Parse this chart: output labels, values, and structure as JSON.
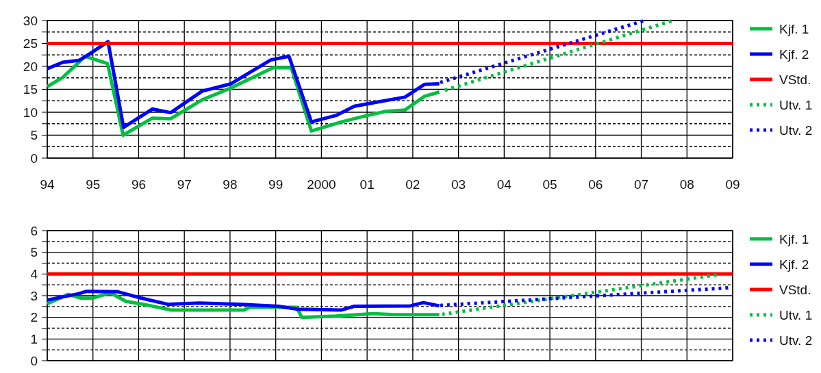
{
  "chart_data": [
    {
      "type": "line",
      "xlim": [
        1994,
        2009
      ],
      "xticks": [
        {
          "value": 1994,
          "label": "94"
        },
        {
          "value": 1995,
          "label": "95"
        },
        {
          "value": 1996,
          "label": "96"
        },
        {
          "value": 1997,
          "label": "97"
        },
        {
          "value": 1998,
          "label": "98"
        },
        {
          "value": 1999,
          "label": "99"
        },
        2000,
        {
          "value": 2001,
          "label": "01"
        },
        {
          "value": 2002,
          "label": "02"
        },
        {
          "value": 2003,
          "label": "03"
        },
        {
          "value": 2004,
          "label": "04"
        },
        {
          "value": 2005,
          "label": "05"
        },
        {
          "value": 2006,
          "label": "06"
        },
        {
          "value": 2007,
          "label": "07"
        },
        {
          "value": 2008,
          "label": "08"
        },
        {
          "value": 2009,
          "label": "09"
        }
      ],
      "ylim": [
        0,
        30
      ],
      "yticks": [
        0,
        {
          "value": 2.5,
          "label": null
        },
        5,
        {
          "value": 7.5,
          "label": null
        },
        10,
        {
          "value": 12.5,
          "label": null
        },
        15,
        {
          "value": 17.5,
          "label": null
        },
        20,
        {
          "value": 22.5,
          "label": null
        },
        25,
        {
          "value": 27.5,
          "label": null
        },
        30
      ],
      "grid": true,
      "legend": "right",
      "line_style": "solid",
      "series": [
        {
          "name": "Kjf. 1",
          "color": "#00c040",
          "x": [
            1994,
            1994.34,
            1994.83,
            1995.32,
            1995.66,
            1996.3,
            1996.7,
            1997.39,
            1998.02,
            1998.94,
            1999.34,
            1999.78,
            2000.44,
            2001.01,
            2001.41,
            2001.83,
            2002.26,
            2002.58
          ],
          "values": [
            15.6,
            17.6,
            22.2,
            20.6,
            5,
            8.7,
            8.6,
            12.7,
            15.3,
            19.7,
            19.7,
            5.9,
            7.9,
            9.3,
            10.2,
            10.5,
            13.5,
            14.4
          ]
        },
        {
          "name": "Kjf. 2",
          "color": "#0000ff",
          "x": [
            1994,
            1994.34,
            1994.69,
            1994.86,
            1995.33,
            1995.67,
            1996.3,
            1996.7,
            1997.39,
            1998.02,
            1998.89,
            1999.29,
            1999.78,
            2000.32,
            2000.72,
            2001.21,
            2001.83,
            2002.26,
            2002.58
          ],
          "values": [
            19.5,
            20.9,
            21.3,
            22.3,
            25.4,
            6.7,
            10.7,
            9.9,
            14.6,
            16.2,
            21.4,
            22.2,
            7.9,
            9.3,
            11.3,
            12.2,
            13.3,
            16.1,
            16.2
          ]
        },
        {
          "name": "VStd.",
          "color": "#ff0000",
          "x": [
            1994,
            2009
          ],
          "values": [
            25,
            25
          ]
        },
        {
          "name": "Utv. 1",
          "color": "#00c040",
          "line_style": "dotted",
          "x": [
            2002.7,
            2007.66
          ],
          "values": [
            14.8,
            29.9
          ]
        },
        {
          "name": "Utv. 2",
          "color": "#0000ff",
          "line_style": "dotted",
          "x": [
            2002.6,
            2007.04
          ],
          "values": [
            16.5,
            29.9
          ]
        }
      ]
    },
    {
      "type": "line",
      "xlim": [
        1994,
        2009
      ],
      "ylim": [
        0,
        6
      ],
      "yticks": [
        0,
        {
          "value": 0.5,
          "label": null
        },
        1,
        {
          "value": 1.5,
          "label": null
        },
        2,
        {
          "value": 2.5,
          "label": null
        },
        3,
        {
          "value": 3.5,
          "label": null
        },
        4,
        {
          "value": 4.5,
          "label": null
        },
        5,
        {
          "value": 5.5,
          "label": null
        },
        6
      ],
      "tick_labels": "y",
      "grid": true,
      "legend": "right",
      "line_style": "solid",
      "series": [
        {
          "name": "Kjf. 1",
          "color": "#00c040",
          "x": [
            1994,
            1994.46,
            1994.75,
            1994.98,
            1995.38,
            1995.72,
            1996.18,
            1996.7,
            1998.31,
            1998.43,
            1999.46,
            1999.57,
            2000.32,
            2001.13,
            2001.59,
            2002.58
          ],
          "values": [
            2.63,
            3.06,
            2.88,
            2.88,
            3.13,
            2.74,
            2.57,
            2.34,
            2.34,
            2.46,
            2.46,
            2.0,
            2.06,
            2.17,
            2.12,
            2.12
          ]
        },
        {
          "name": "Kjf. 2",
          "color": "#0000ff",
          "x": [
            1994,
            1994.69,
            1994.86,
            1995.55,
            1996.07,
            1996.64,
            1997.33,
            1998.25,
            1999.06,
            1999.46,
            2000.44,
            2000.72,
            2001.95,
            2002.23,
            2002.58
          ],
          "values": [
            2.8,
            3.09,
            3.2,
            3.18,
            2.88,
            2.6,
            2.66,
            2.6,
            2.51,
            2.38,
            2.34,
            2.51,
            2.53,
            2.68,
            2.53
          ]
        },
        {
          "name": "VStd.",
          "color": "#ff0000",
          "x": [
            1994,
            2009
          ],
          "values": [
            4,
            4
          ]
        },
        {
          "name": "Utv. 1",
          "color": "#00c040",
          "line_style": "dotted",
          "x": [
            2002.64,
            2008.65
          ],
          "values": [
            2.14,
            3.96
          ]
        },
        {
          "name": "Utv. 2",
          "color": "#0000ff",
          "line_style": "dotted",
          "x": [
            2002.6,
            2008.9
          ],
          "values": [
            2.55,
            3.36
          ]
        }
      ]
    }
  ]
}
